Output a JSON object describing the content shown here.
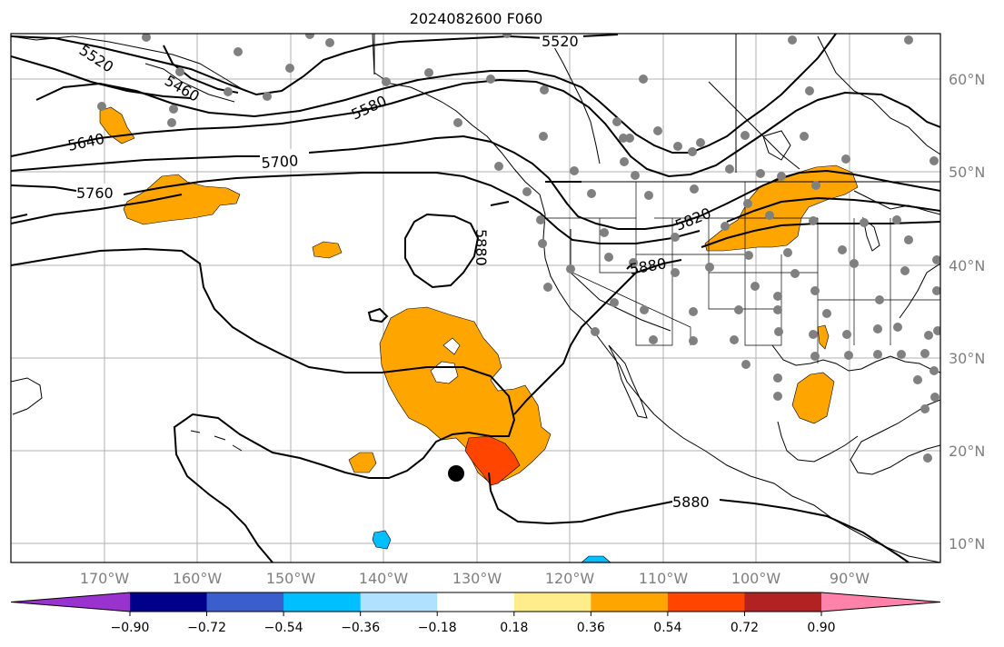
{
  "title": "2024082600 F060",
  "lat_labels": [
    "60°N",
    "50°N",
    "40°N",
    "30°N",
    "20°N",
    "10°N"
  ],
  "lon_labels": [
    "170°W",
    "160°W",
    "150°W",
    "140°W",
    "130°W",
    "120°W",
    "110°W",
    "100°W",
    "90°W"
  ],
  "colorbar": {
    "ticks": [
      "−0.90",
      "−0.72",
      "−0.54",
      "−0.36",
      "−0.18",
      "0.18",
      "0.36",
      "0.54",
      "0.72",
      "0.90"
    ],
    "colors": [
      "#9a32cd",
      "#00008b",
      "#3a5fcd",
      "#00bfff",
      "#b0e2ff",
      "#ffffff",
      "#ffec8b",
      "#ffa500",
      "#ff4500",
      "#b22222",
      "#ff82ab"
    ]
  },
  "contour_labels": [
    "5520",
    "5520",
    "5460",
    "5580",
    "5640",
    "5700",
    "5760",
    "5880",
    "5820",
    "5880",
    "5880"
  ],
  "fill_colors": {
    "orange": "#ffa500",
    "red_orange": "#ff4500",
    "light_blue": "#00bfff",
    "marker_gray": "#808080"
  }
}
